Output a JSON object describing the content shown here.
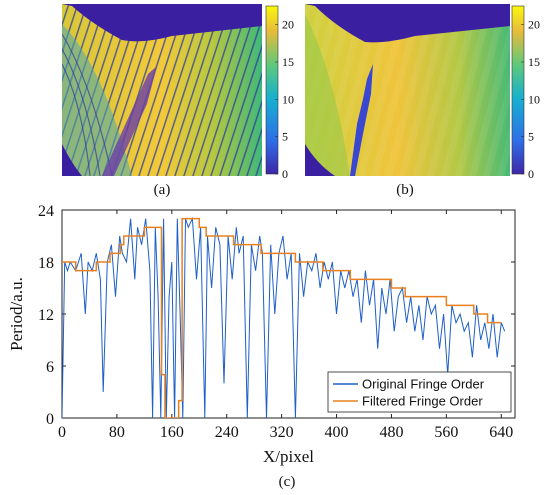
{
  "panels": {
    "a": {
      "caption": "(a)"
    },
    "b": {
      "caption": "(b)"
    },
    "c": {
      "caption": "(c)"
    }
  },
  "colorbar": {
    "ticks": [
      "0",
      "5",
      "10",
      "15",
      "20"
    ],
    "range": [
      0,
      22.5
    ],
    "colormap": "parula"
  },
  "colors": {
    "original": "#1f5fc8",
    "filtered": "#e8801e",
    "background_dark": "#3a1fa0"
  },
  "chart_data": {
    "type": "line",
    "xlabel": "X/pixel",
    "ylabel": "Period/a.u.",
    "xlim": [
      0,
      660
    ],
    "ylim": [
      0,
      24
    ],
    "xticks": [
      0,
      80,
      160,
      240,
      320,
      400,
      480,
      560,
      640
    ],
    "yticks": [
      0,
      6,
      12,
      18,
      24
    ],
    "legend": {
      "placement": "bottom-right"
    },
    "series": [
      {
        "name": "Original Fringe Order",
        "style": "noisy-line",
        "values_x": [
          0,
          4,
          8,
          12,
          20,
          28,
          34,
          38,
          44,
          50,
          56,
          60,
          66,
          72,
          78,
          84,
          88,
          94,
          100,
          106,
          110,
          116,
          122,
          128,
          132,
          136,
          140,
          144,
          148,
          152,
          156,
          160,
          164,
          168,
          172,
          176,
          180,
          184,
          190,
          196,
          202,
          208,
          212,
          218,
          224,
          230,
          236,
          242,
          248,
          254,
          258,
          264,
          270,
          276,
          282,
          288,
          292,
          298,
          304,
          310,
          316,
          322,
          328,
          334,
          340,
          346,
          352,
          358,
          364,
          370,
          376,
          382,
          388,
          394,
          400,
          406,
          412,
          418,
          424,
          430,
          436,
          442,
          448,
          454,
          460,
          466,
          472,
          478,
          484,
          490,
          496,
          502,
          508,
          514,
          520,
          526,
          532,
          538,
          544,
          550,
          556,
          562,
          568,
          574,
          580,
          586,
          592,
          598,
          604,
          610,
          616,
          622,
          628,
          634,
          640,
          645
        ],
        "values_y": [
          0,
          18,
          17,
          18,
          17,
          19,
          12,
          18,
          17,
          19,
          16,
          3,
          18,
          20,
          14,
          21,
          19,
          18,
          23,
          16,
          22,
          20,
          23,
          17,
          0,
          22,
          14,
          0,
          23,
          0,
          14,
          18,
          0,
          23,
          12,
          0,
          23,
          22,
          23,
          16,
          22,
          0,
          21,
          15,
          22,
          20,
          4,
          21,
          16,
          22,
          19,
          21,
          0,
          20,
          17,
          21,
          19,
          0,
          20,
          12,
          19,
          21,
          16,
          19,
          0,
          19,
          14,
          18,
          17,
          19,
          15,
          18,
          16,
          18,
          12,
          17,
          15,
          17,
          14,
          16,
          11,
          17,
          13,
          16,
          8,
          15,
          12,
          16,
          10,
          14,
          15,
          11,
          14,
          10,
          13,
          9,
          14,
          12,
          13,
          8,
          12,
          5,
          13,
          11,
          12,
          10,
          11,
          7,
          13,
          9,
          11,
          8,
          12,
          7,
          11,
          10
        ],
        "values_note": "approximate envelope of dense noisy trace"
      },
      {
        "name": "Filtered Fringe Order",
        "style": "step",
        "values_x": [
          0,
          20,
          30,
          50,
          70,
          85,
          90,
          100,
          120,
          130,
          140,
          145,
          150,
          155,
          160,
          165,
          170,
          175,
          180,
          190,
          200,
          210,
          230,
          250,
          270,
          290,
          300,
          320,
          340,
          360,
          380,
          400,
          420,
          440,
          460,
          480,
          500,
          520,
          540,
          560,
          580,
          600,
          620,
          640
        ],
        "values_y": [
          18,
          17,
          17,
          18,
          19,
          20,
          21,
          21,
          22,
          22,
          22,
          5,
          0,
          0,
          0,
          0,
          2,
          23,
          23,
          23,
          22,
          21,
          21,
          20,
          20,
          19,
          19,
          19,
          18,
          18,
          17,
          17,
          16,
          16,
          16,
          15,
          14,
          14,
          14,
          13,
          13,
          12,
          11,
          11
        ]
      }
    ]
  }
}
